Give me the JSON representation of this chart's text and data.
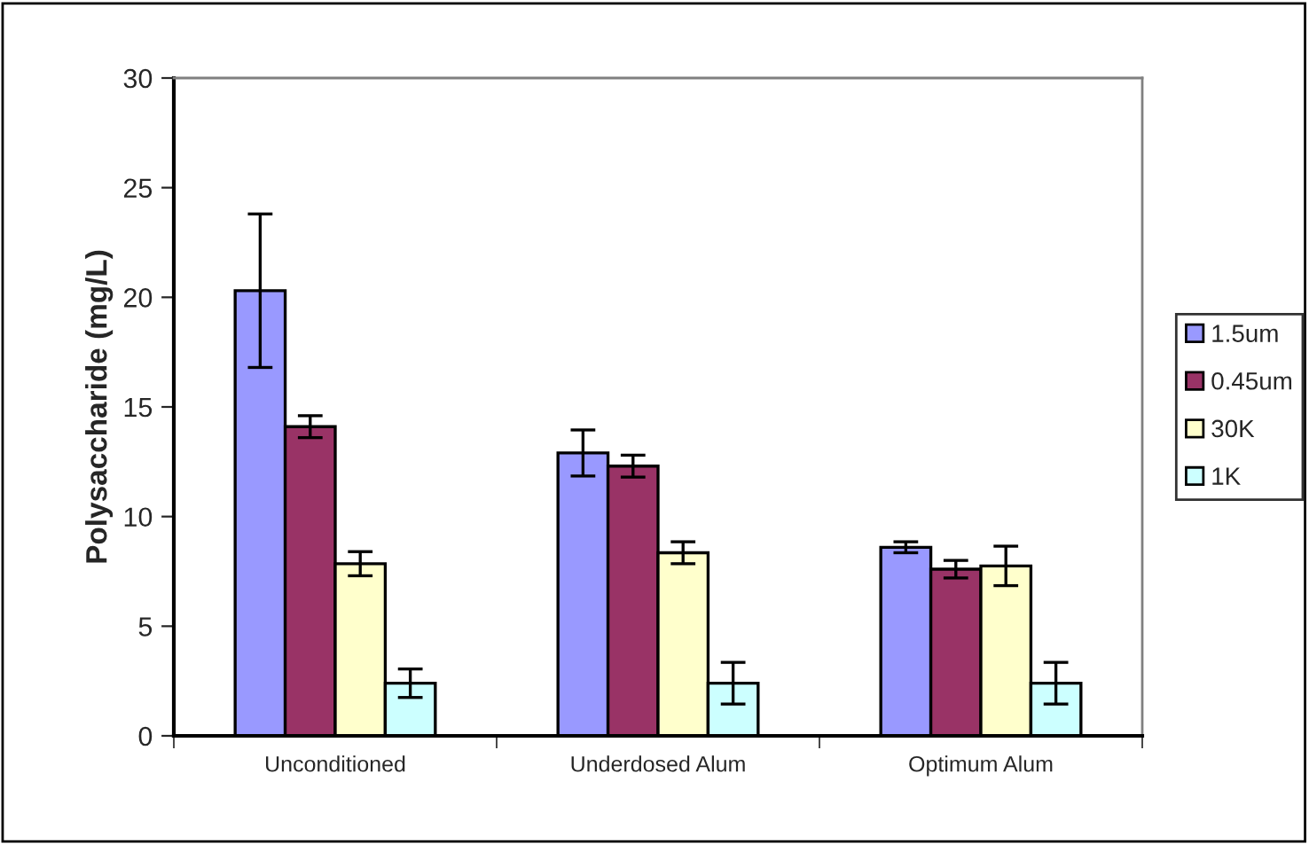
{
  "chart_data": {
    "type": "bar",
    "ylabel": "Polysaccharide (mg/L)",
    "categories": [
      "Unconditioned",
      "Underdosed Alum",
      "Optimum Alum"
    ],
    "series": [
      {
        "name": "1.5um",
        "color": "#9999ff",
        "values": [
          20.3,
          12.9,
          8.6
        ],
        "errors": [
          3.5,
          1.05,
          0.25
        ]
      },
      {
        "name": "0.45um",
        "color": "#993366",
        "values": [
          14.1,
          12.3,
          7.6
        ],
        "errors": [
          0.5,
          0.5,
          0.4
        ]
      },
      {
        "name": "30K",
        "color": "#ffffcc",
        "values": [
          7.85,
          8.35,
          7.75
        ],
        "errors": [
          0.55,
          0.5,
          0.9
        ]
      },
      {
        "name": "1K",
        "color": "#ccffff",
        "values": [
          2.4,
          2.4,
          2.4
        ],
        "errors": [
          0.65,
          0.95,
          0.95
        ]
      }
    ],
    "ylim": [
      0,
      30
    ],
    "yticks": [
      0,
      5,
      10,
      15,
      20,
      25,
      30
    ],
    "grid": false,
    "legend": "right"
  }
}
